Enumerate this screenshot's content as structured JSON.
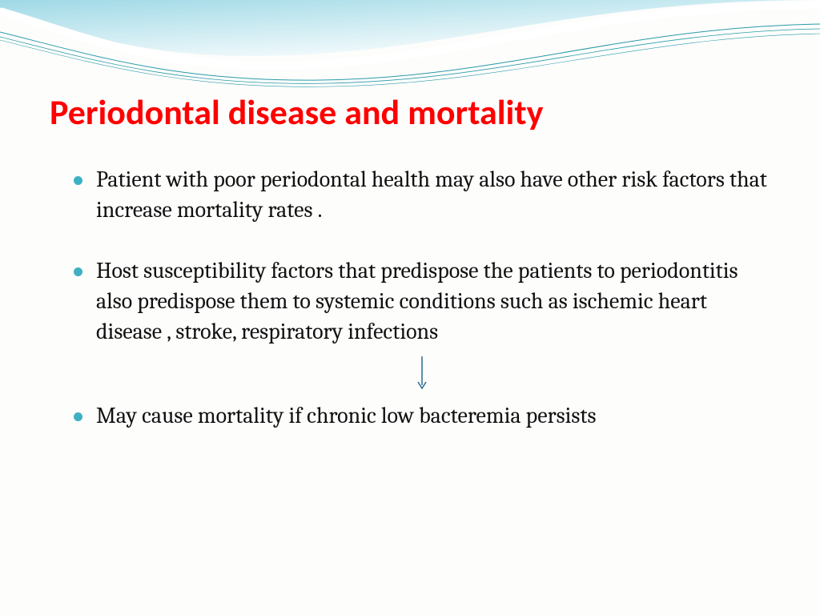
{
  "slide": {
    "title": "Periodontal disease and mortality",
    "title_color": "#ff0000",
    "bullet_color": "#3db0c4",
    "body_color": "#111111",
    "background_color": "#fdfdfc",
    "bullets": [
      "Patient with poor periodontal health may also have other risk factors that increase mortality rates .",
      "Host susceptibility factors that predispose the patients to periodontitis also predispose them to systemic conditions such as ischemic heart disease , stroke, respiratory infections",
      "May cause mortality if chronic low bacteremia persists"
    ],
    "arrow": {
      "after_bullet_index": 1,
      "color": "#2a6b8f",
      "length": 44
    },
    "title_fontsize": 44,
    "body_fontsize": 28
  },
  "header_wave": {
    "gradient_start": "#9fd9e6",
    "gradient_end": "#ffffff",
    "stroke_color": "#1a7a8f",
    "thin_stroke_color": "#2a9aa8"
  }
}
